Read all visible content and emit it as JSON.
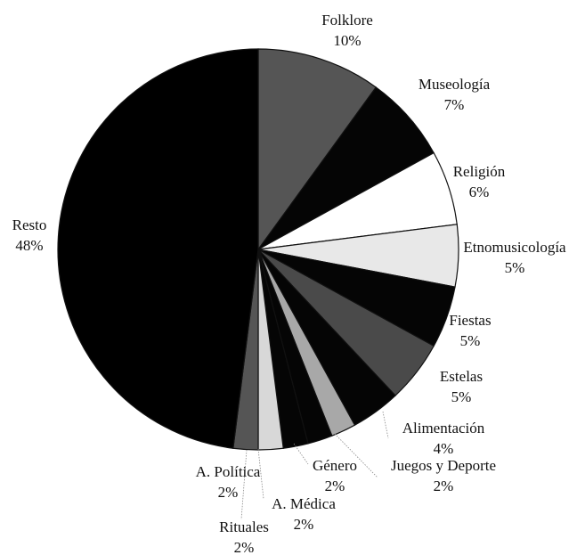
{
  "chart_data": {
    "type": "pie",
    "slices": [
      {
        "label": "Folklore",
        "value": 10,
        "value_label": "10%",
        "color": "#555555"
      },
      {
        "label": "Museología",
        "value": 7,
        "value_label": "7%",
        "color": "#050505"
      },
      {
        "label": "Religión",
        "value": 6,
        "value_label": "6%",
        "color": "#ffffff"
      },
      {
        "label": "Etnomusicología",
        "value": 5,
        "value_label": "5%",
        "color": "#e8e8e8"
      },
      {
        "label": "Fiestas",
        "value": 5,
        "value_label": "5%",
        "color": "#050505"
      },
      {
        "label": "Estelas",
        "value": 5,
        "value_label": "5%",
        "color": "#4a4a4a"
      },
      {
        "label": "Alimentación",
        "value": 4,
        "value_label": "4%",
        "color": "#050505"
      },
      {
        "label": "Juegos y Deporte",
        "value": 2,
        "value_label": "2%",
        "color": "#a8a8a8"
      },
      {
        "label": "Género",
        "value": 2,
        "value_label": "2%",
        "color": "#050505"
      },
      {
        "label": "A. Médica",
        "value": 2,
        "value_label": "2%",
        "color": "#050505"
      },
      {
        "label": "Rituales",
        "value": 2,
        "value_label": "2%",
        "color": "#d8d8d8"
      },
      {
        "label": "A. Política",
        "value": 2,
        "value_label": "2%",
        "color": "#555555"
      },
      {
        "label": "Resto",
        "value": 48,
        "value_label": "48%",
        "color": "#000000"
      }
    ],
    "start": "12 o'clock",
    "direction": "clockwise",
    "legend": "none"
  }
}
